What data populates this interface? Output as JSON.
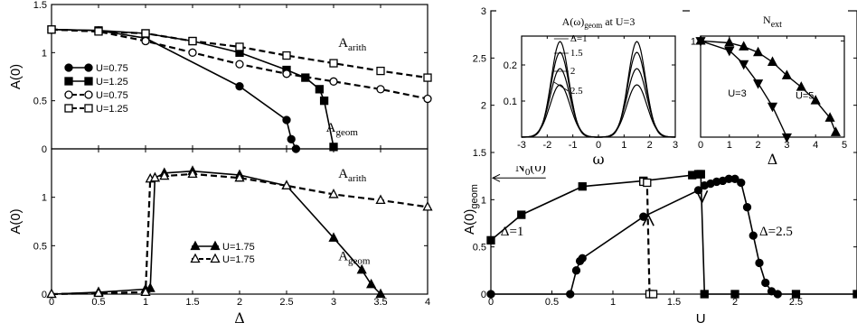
{
  "chart_data": [
    {
      "id": "top-left",
      "type": "line",
      "ylabel": "A(0)",
      "xlim": [
        0,
        4
      ],
      "ylim": [
        0,
        1.5
      ],
      "xticks": [
        0,
        0.5,
        1,
        1.5,
        2,
        2.5,
        3,
        3.5,
        4
      ],
      "xticklabels": [
        "",
        "",
        "",
        "",
        "",
        "",
        "",
        "",
        ""
      ],
      "yticks": [
        0,
        0.5,
        1,
        1.5
      ],
      "yticklabels": [
        "0",
        "0.5",
        "1",
        "1.5"
      ],
      "legend_position": "left",
      "annotations": [
        {
          "text": "A",
          "sub": "arith",
          "x": 3.05,
          "y": 1.06
        },
        {
          "text": "A",
          "sub": "geom",
          "x": 2.92,
          "y": 0.18
        }
      ],
      "series": [
        {
          "name": "U=0.75",
          "marker": "circle",
          "fill": true,
          "dash": false,
          "x": [
            0,
            0.5,
            1,
            2,
            2.5,
            2.55,
            2.6
          ],
          "y": [
            1.24,
            1.23,
            1.15,
            0.65,
            0.3,
            0.1,
            0.0
          ]
        },
        {
          "name": "U=1.25",
          "marker": "square",
          "fill": true,
          "dash": false,
          "x": [
            0,
            0.5,
            1,
            1.5,
            2,
            2.5,
            2.7,
            2.85,
            2.9,
            3.0
          ],
          "y": [
            1.24,
            1.23,
            1.2,
            1.12,
            1.0,
            0.82,
            0.74,
            0.62,
            0.5,
            0.02
          ]
        },
        {
          "name": "U=0.75",
          "marker": "circle",
          "fill": false,
          "dash": true,
          "x": [
            0,
            0.5,
            1,
            1.5,
            2,
            2.5,
            3,
            3.5,
            4
          ],
          "y": [
            1.24,
            1.22,
            1.12,
            1.0,
            0.88,
            0.78,
            0.7,
            0.62,
            0.52
          ]
        },
        {
          "name": "U=1.25",
          "marker": "square",
          "fill": false,
          "dash": true,
          "x": [
            0,
            0.5,
            1,
            1.5,
            2,
            2.5,
            3,
            3.5,
            4
          ],
          "y": [
            1.24,
            1.22,
            1.2,
            1.12,
            1.06,
            0.97,
            0.89,
            0.81,
            0.74
          ]
        }
      ]
    },
    {
      "id": "bottom-left",
      "type": "line",
      "ylabel": "A(0)",
      "xlabel": "Δ",
      "xlim": [
        0,
        4
      ],
      "ylim": [
        0,
        1.5
      ],
      "xticks": [
        0,
        0.5,
        1,
        1.5,
        2,
        2.5,
        3,
        3.5,
        4
      ],
      "xticklabels": [
        "0",
        "0.5",
        "1",
        "1.5",
        "2",
        "2.5",
        "3",
        "3.5",
        "4"
      ],
      "yticks": [
        0,
        0.5,
        1
      ],
      "yticklabels": [
        "0",
        "0.5",
        "1"
      ],
      "legend_position": "center-left",
      "annotations": [
        {
          "text": "A",
          "sub": "arith",
          "x": 3.05,
          "y": 1.2
        },
        {
          "text": "A",
          "sub": "geom",
          "x": 3.05,
          "y": 0.35
        }
      ],
      "series": [
        {
          "name": "U=1.75",
          "marker": "triangle",
          "fill": true,
          "dash": false,
          "x": [
            0,
            0.5,
            1,
            1.05,
            1.1,
            1.2,
            1.5,
            2,
            2.5,
            3,
            3.3,
            3.4,
            3.5
          ],
          "y": [
            0.0,
            0.02,
            0.05,
            0.06,
            1.2,
            1.25,
            1.27,
            1.23,
            1.12,
            0.58,
            0.25,
            0.1,
            0.0
          ]
        },
        {
          "name": "U=1.75",
          "marker": "triangle",
          "fill": false,
          "dash": true,
          "x": [
            0,
            0.5,
            1,
            1.05,
            1.1,
            1.2,
            1.5,
            2,
            2.5,
            3,
            3.5,
            4
          ],
          "y": [
            0.0,
            0.01,
            0.02,
            1.19,
            1.2,
            1.22,
            1.24,
            1.2,
            1.12,
            1.03,
            0.97,
            0.9
          ]
        }
      ]
    },
    {
      "id": "right-main",
      "type": "line",
      "ylabel": "A(0)",
      "ylabel_sub": "geom",
      "xlabel": "U",
      "xlim": [
        0,
        3
      ],
      "ylim": [
        0,
        3
      ],
      "xticks": [
        0,
        0.5,
        1,
        1.5,
        2,
        2.5
      ],
      "xticklabels": [
        "0",
        "0.5",
        "1",
        "1.5",
        "2",
        "2.5"
      ],
      "yticks": [
        0,
        0.5,
        1,
        1.5,
        2,
        2.5,
        3
      ],
      "yticklabels": [
        "0",
        "0.5",
        "1",
        "1.5",
        "2",
        "2.5",
        "3"
      ],
      "annotations": [
        {
          "text": "N",
          "sub": "0",
          "suffix": "(0)",
          "x": 0.2,
          "y": 1.3
        },
        {
          "text": "Δ=1",
          "x": 0.08,
          "y": 0.62
        },
        {
          "text": "Δ=2.5",
          "x": 2.2,
          "y": 0.62
        }
      ],
      "series": [
        {
          "name": "Δ=1 (solid, up)",
          "marker": "square",
          "fill": true,
          "dash": false,
          "x": [
            0,
            0.25,
            0.75,
            1.25,
            1.65,
            1.7,
            1.72
          ],
          "y": [
            0.57,
            0.84,
            1.14,
            1.2,
            1.26,
            1.27,
            1.27
          ]
        },
        {
          "name": "Δ=1 (dashed, down)",
          "marker": "square",
          "fill": false,
          "dash": true,
          "x": [
            1.25,
            1.28,
            1.3,
            1.33
          ],
          "y": [
            1.19,
            1.18,
            0.0,
            0.0
          ]
        },
        {
          "name": "Δ=1 (drop)",
          "marker": "square",
          "fill": true,
          "dash": false,
          "x": [
            1.72,
            1.75,
            2.0,
            2.5,
            3.0
          ],
          "y": [
            1.27,
            0.0,
            0.0,
            0.0,
            0.0
          ]
        },
        {
          "name": "Δ=2.5",
          "marker": "circle",
          "fill": true,
          "dash": false,
          "x": [
            0,
            0.65,
            0.7,
            0.73,
            0.75,
            1.25,
            1.7,
            1.75,
            1.8,
            1.85,
            1.9,
            1.95,
            2.0,
            2.05,
            2.1,
            2.15,
            2.2,
            2.25,
            2.3,
            2.35
          ],
          "y": [
            0.0,
            0.0,
            0.25,
            0.35,
            0.38,
            0.82,
            1.1,
            1.15,
            1.17,
            1.19,
            1.2,
            1.22,
            1.22,
            1.18,
            0.92,
            0.62,
            0.33,
            0.12,
            0.03,
            0.0
          ]
        }
      ]
    },
    {
      "id": "inset-spectrum",
      "type": "line",
      "title": "A(ω)",
      "title_sub": "geom",
      "title_suffix": " at U=3",
      "xlabel": "ω",
      "xlim": [
        -3,
        3
      ],
      "ylim": [
        0,
        0.28
      ],
      "xticks": [
        -3,
        -2,
        -1,
        0,
        1,
        2,
        3
      ],
      "xticklabels": [
        "-3",
        "-2",
        "-1",
        "0",
        "1",
        "2",
        "3"
      ],
      "yticks": [
        0.1,
        0.2
      ],
      "yticklabels": [
        "0.1",
        "0.2"
      ],
      "annotations": [
        {
          "text": "Δ=1",
          "x": -1.1,
          "y": 0.265
        },
        {
          "text": "1.5",
          "x": -1.1,
          "y": 0.225
        },
        {
          "text": "2",
          "x": -1.1,
          "y": 0.175
        },
        {
          "text": "2.5",
          "x": -1.1,
          "y": 0.12
        }
      ],
      "series": [
        {
          "name": "Δ=1",
          "peak": 0.265,
          "center": 1.5,
          "width": 0.65
        },
        {
          "name": "Δ=1.5",
          "peak": 0.235,
          "center": 1.5,
          "width": 0.68
        },
        {
          "name": "Δ=2",
          "peak": 0.19,
          "center": 1.5,
          "width": 0.72
        },
        {
          "name": "Δ=2.5",
          "peak": 0.145,
          "center": 1.5,
          "width": 0.75
        }
      ]
    },
    {
      "id": "inset-next",
      "type": "line",
      "title": "N",
      "title_sub": "ext",
      "xlabel": "Δ",
      "xlim": [
        0,
        5
      ],
      "ylim": [
        0,
        1.05
      ],
      "xticks": [
        0,
        1,
        2,
        3,
        4,
        5
      ],
      "xticklabels": [
        "0",
        "1",
        "2",
        "3",
        "4",
        "5"
      ],
      "yticks": [
        1
      ],
      "yticklabels": [
        "1"
      ],
      "annotations": [
        {
          "text": "U=5",
          "x": 3.3,
          "y": 0.4
        },
        {
          "text": "U=3",
          "x": 0.95,
          "y": 0.42
        }
      ],
      "series": [
        {
          "name": "U=5",
          "marker": "triangle",
          "fill": true,
          "x": [
            0,
            1,
            1.5,
            2,
            2.5,
            3,
            3.5,
            4,
            4.5,
            4.7
          ],
          "y": [
            1.0,
            0.98,
            0.94,
            0.88,
            0.78,
            0.64,
            0.52,
            0.38,
            0.2,
            0.05
          ]
        },
        {
          "name": "U=3",
          "marker": "triangle-down",
          "fill": true,
          "x": [
            0,
            1,
            1.5,
            2,
            2.5,
            3
          ],
          "y": [
            1.0,
            0.9,
            0.76,
            0.56,
            0.32,
            0.0
          ]
        }
      ]
    }
  ]
}
